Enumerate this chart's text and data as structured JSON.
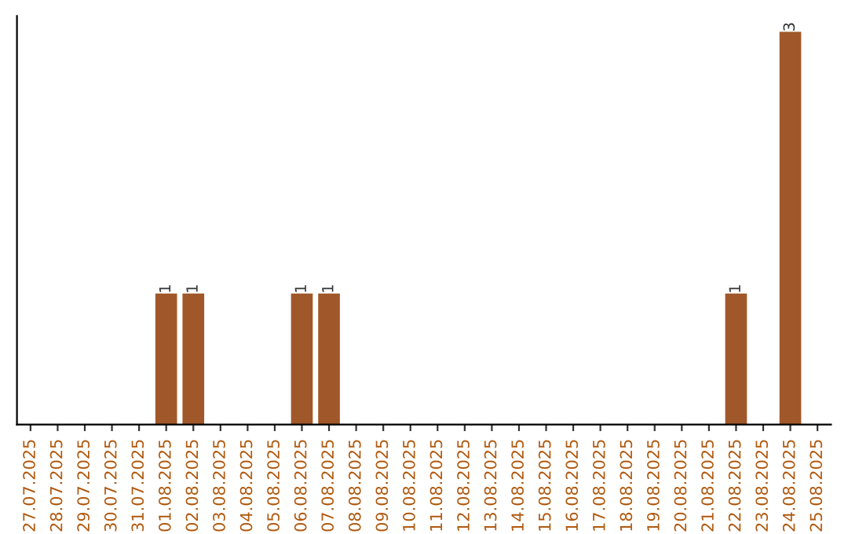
{
  "chart_data": {
    "type": "bar",
    "categories": [
      "27.07.2025",
      "28.07.2025",
      "29.07.2025",
      "30.07.2025",
      "31.07.2025",
      "01.08.2025",
      "02.08.2025",
      "03.08.2025",
      "04.08.2025",
      "05.08.2025",
      "06.08.2025",
      "07.08.2025",
      "08.08.2025",
      "09.08.2025",
      "10.08.2025",
      "11.08.2025",
      "12.08.2025",
      "13.08.2025",
      "14.08.2025",
      "15.08.2025",
      "16.08.2025",
      "17.08.2025",
      "18.08.2025",
      "19.08.2025",
      "20.08.2025",
      "21.08.2025",
      "22.08.2025",
      "23.08.2025",
      "24.08.2025",
      "25.08.2025"
    ],
    "values": [
      0,
      0,
      0,
      0,
      0,
      1,
      1,
      0,
      0,
      0,
      1,
      1,
      0,
      0,
      0,
      0,
      0,
      0,
      0,
      0,
      0,
      0,
      0,
      0,
      0,
      0,
      1,
      0,
      3,
      0
    ],
    "value_labels": [
      null,
      null,
      null,
      null,
      null,
      "1",
      "1",
      null,
      null,
      null,
      "1",
      "1",
      null,
      null,
      null,
      null,
      null,
      null,
      null,
      null,
      null,
      null,
      null,
      null,
      null,
      null,
      "1",
      null,
      "3",
      null
    ],
    "color": "#a0582a",
    "tick_labels": "x",
    "grid": false,
    "legend": false
  }
}
